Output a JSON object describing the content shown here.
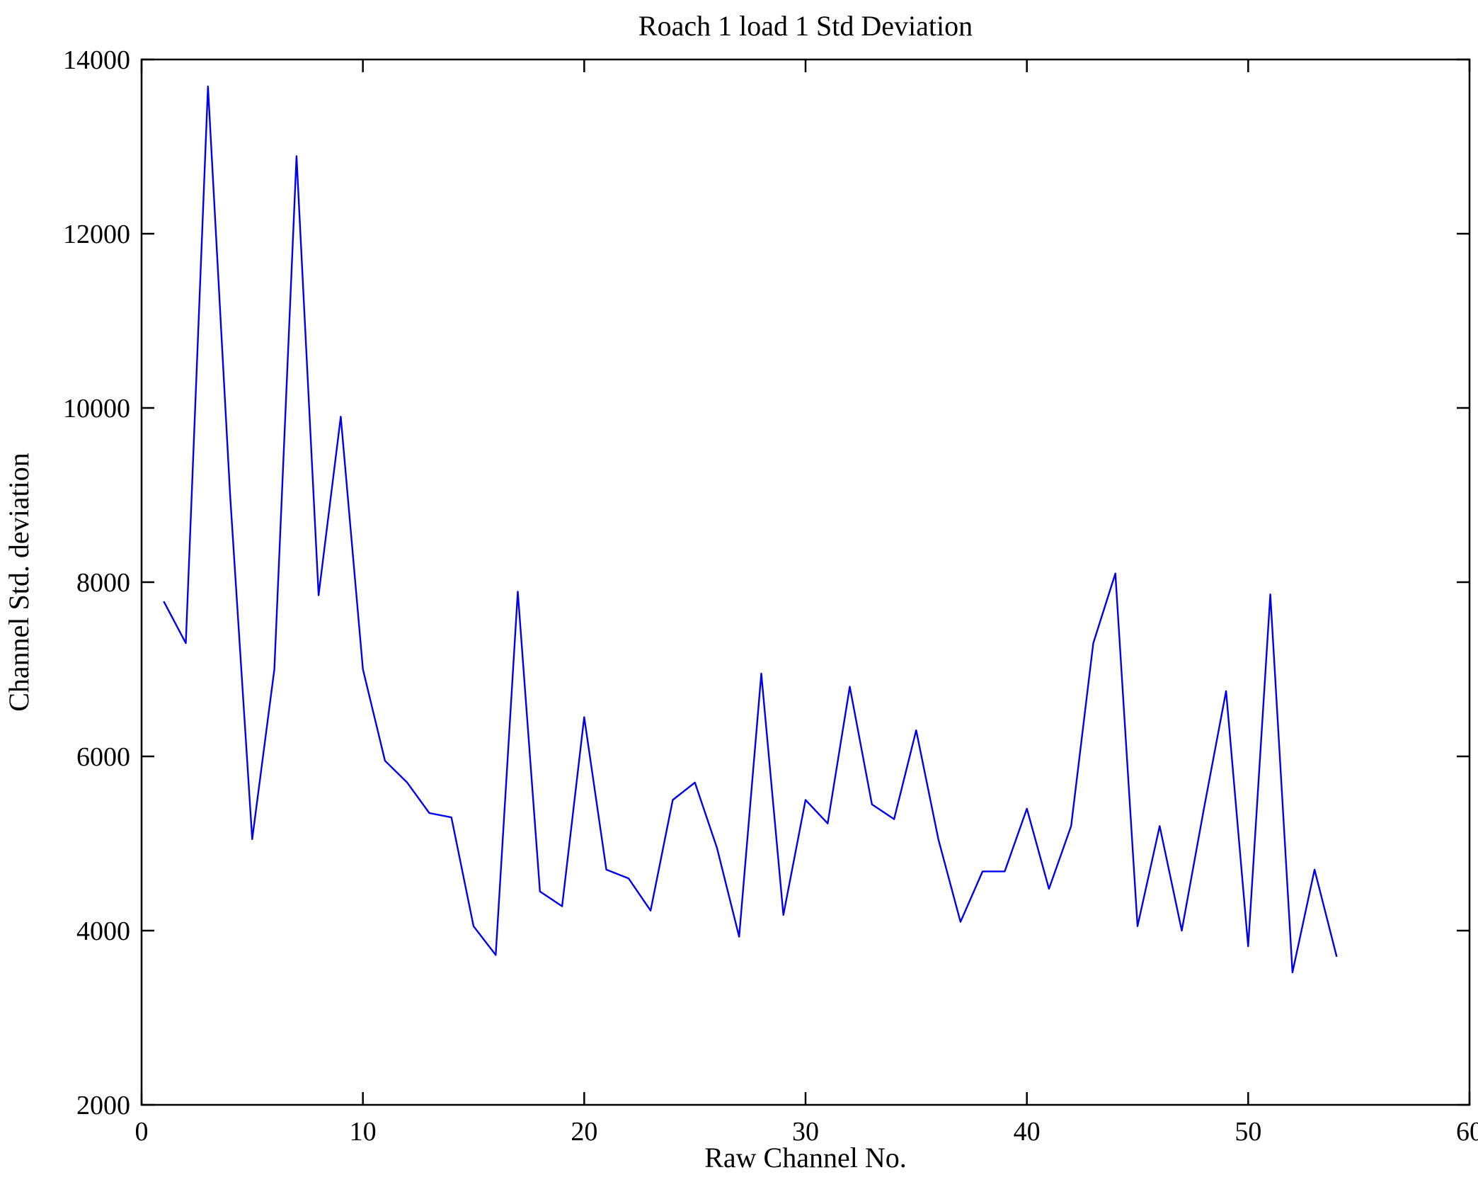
{
  "figure": {
    "background": "#ffffff",
    "frame_color": "#000000",
    "text_color": "#000000"
  },
  "chart_data": {
    "type": "line",
    "title": "Roach 1 load 1 Std Deviation",
    "xlabel": "Raw Channel No.",
    "ylabel": "Channel Std. deviation",
    "xlim": [
      0,
      60
    ],
    "ylim": [
      2000,
      14000
    ],
    "xticks": [
      0,
      10,
      20,
      30,
      40,
      50,
      60
    ],
    "yticks": [
      2000,
      4000,
      6000,
      8000,
      10000,
      12000,
      14000
    ],
    "grid": false,
    "legend": null,
    "line_color": "#0000ee",
    "x": [
      1,
      2,
      3,
      4,
      5,
      6,
      7,
      8,
      9,
      10,
      11,
      12,
      13,
      14,
      15,
      16,
      17,
      18,
      19,
      20,
      21,
      22,
      23,
      24,
      25,
      26,
      27,
      28,
      29,
      30,
      31,
      32,
      33,
      34,
      35,
      36,
      37,
      38,
      39,
      40,
      41,
      42,
      43,
      44,
      45,
      46,
      47,
      48,
      49,
      50,
      51,
      52,
      53,
      54
    ],
    "values": [
      7780,
      7300,
      13690,
      9000,
      5050,
      7000,
      12890,
      7850,
      9900,
      7000,
      5950,
      5700,
      5350,
      5300,
      4050,
      3720,
      7890,
      4450,
      4280,
      6450,
      4700,
      4600,
      4230,
      5500,
      5700,
      4950,
      3930,
      6950,
      4180,
      5500,
      5230,
      6800,
      5450,
      5280,
      6300,
      5050,
      4100,
      4680,
      4680,
      5400,
      4480,
      5200,
      7300,
      8100,
      4050,
      5200,
      4000,
      5400,
      6750,
      3820,
      7860,
      3520,
      4700,
      3700
    ]
  }
}
